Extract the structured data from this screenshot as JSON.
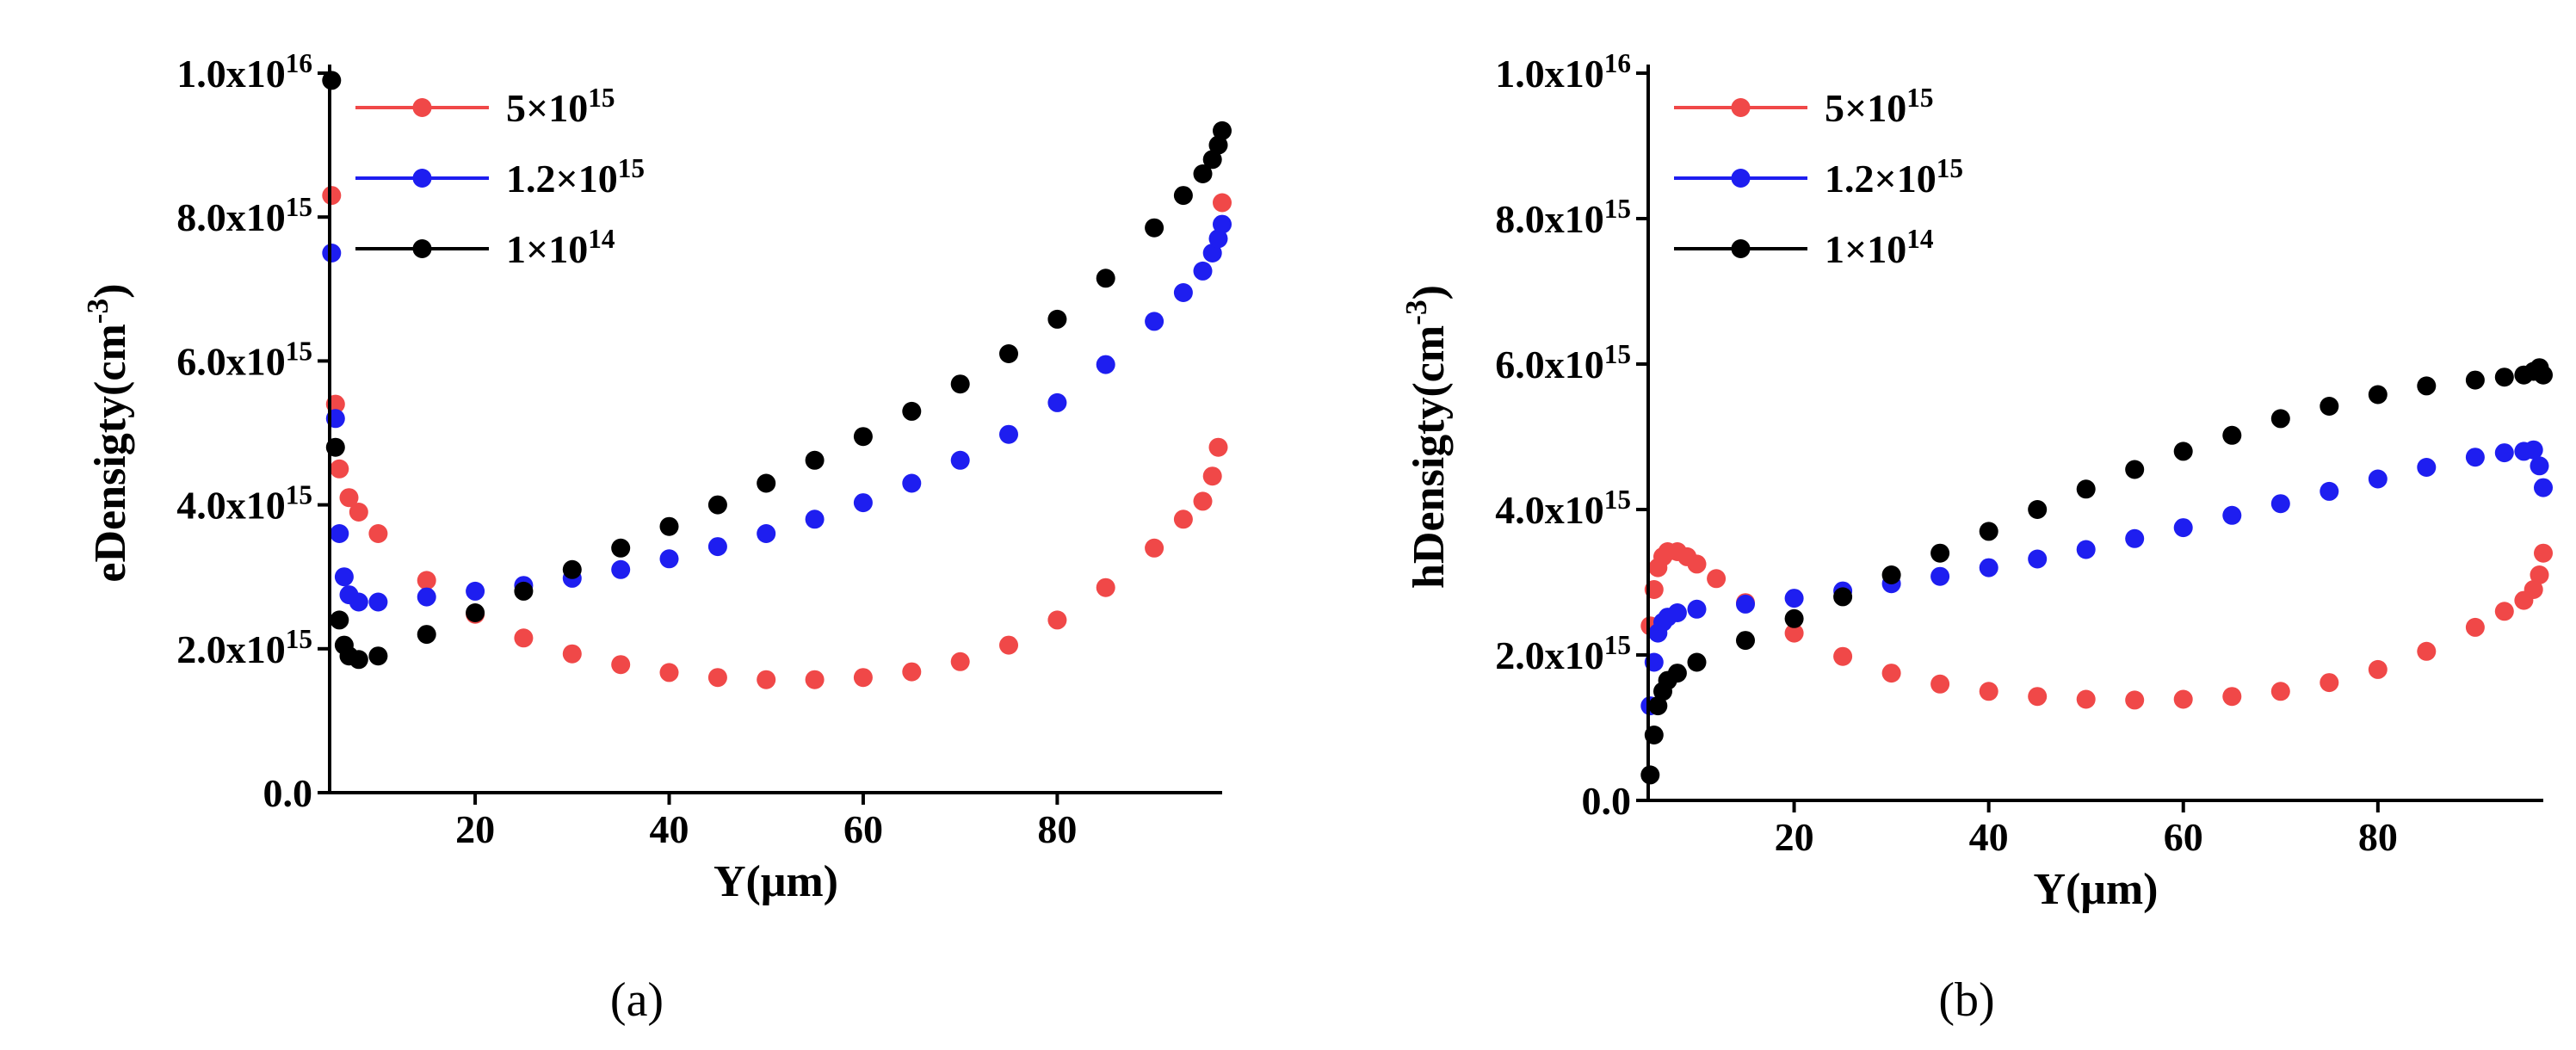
{
  "chart_data": [
    {
      "type": "scatter",
      "panel": "a",
      "caption": "(a)",
      "xlabel": "Y(μm)",
      "ylabel": {
        "base": "eDensigty(cm",
        "sup": "-3",
        "close": ")"
      },
      "xlim": [
        5,
        97
      ],
      "ylim": [
        0,
        1e+16
      ],
      "xticks": [
        20,
        40,
        60,
        80
      ],
      "xtick_labels": [
        "20",
        "40",
        "60",
        "80"
      ],
      "yticks": [
        0,
        2000000000000000.0,
        4000000000000000.0,
        6000000000000000.0,
        8000000000000000.0,
        1e+16
      ],
      "ytick_labels": [
        {
          "base": "0.0",
          "sup": ""
        },
        {
          "base": "2.0x10",
          "sup": "15"
        },
        {
          "base": "4.0x10",
          "sup": "15"
        },
        {
          "base": "6.0x10",
          "sup": "15"
        },
        {
          "base": "8.0x10",
          "sup": "15"
        },
        {
          "base": "1.0x10",
          "sup": "16"
        }
      ],
      "legend": {
        "position": "top-left"
      },
      "series": [
        {
          "name": "5×10^15",
          "label_base": "5×10",
          "label_sup": "15",
          "color": "#f04848",
          "x": [
            5.2,
            5.6,
            6,
            7,
            8,
            10,
            15,
            20,
            25,
            30,
            35,
            40,
            45,
            50,
            55,
            60,
            65,
            70,
            75,
            80,
            85,
            90,
            93,
            95,
            96,
            96.6,
            97
          ],
          "y": [
            8300000000000000.0,
            5400000000000000.0,
            4500000000000000.0,
            4100000000000000.0,
            3900000000000000.0,
            3600000000000000.0,
            2950000000000000.0,
            2480000000000000.0,
            2150000000000000.0,
            1930000000000000.0,
            1780000000000000.0,
            1670000000000000.0,
            1600000000000000.0,
            1570000000000000.0,
            1570000000000000.0,
            1600000000000000.0,
            1680000000000000.0,
            1820000000000000.0,
            2050000000000000.0,
            2400000000000000.0,
            2850000000000000.0,
            3400000000000000.0,
            3800000000000000.0,
            4050000000000000.0,
            4400000000000000.0,
            4800000000000000.0,
            8200000000000000.0
          ]
        },
        {
          "name": "1.2×10^15",
          "label_base": "1.2×10",
          "label_sup": "15",
          "color": "#1e1ef0",
          "x": [
            5.2,
            5.6,
            6,
            6.5,
            7,
            8,
            10,
            15,
            20,
            25,
            30,
            35,
            40,
            45,
            50,
            55,
            60,
            65,
            70,
            75,
            80,
            85,
            90,
            93,
            95,
            96,
            96.6,
            97
          ],
          "y": [
            7500000000000000.0,
            5200000000000000.0,
            3600000000000000.0,
            3000000000000000.0,
            2750000000000000.0,
            2650000000000000.0,
            2650000000000000.0,
            2720000000000000.0,
            2800000000000000.0,
            2880000000000000.0,
            2980000000000000.0,
            3100000000000000.0,
            3250000000000000.0,
            3420000000000000.0,
            3600000000000000.0,
            3800000000000000.0,
            4030000000000000.0,
            4300000000000000.0,
            4620000000000000.0,
            4980000000000000.0,
            5420000000000000.0,
            5950000000000000.0,
            6550000000000000.0,
            6950000000000000.0,
            7250000000000000.0,
            7500000000000000.0,
            7700000000000000.0,
            7900000000000000.0
          ]
        },
        {
          "name": "1×10^14",
          "label_base": "1×10",
          "label_sup": "14",
          "color": "#000000",
          "x": [
            5.2,
            5.6,
            6,
            6.5,
            7,
            8,
            10,
            15,
            20,
            25,
            30,
            35,
            40,
            45,
            50,
            55,
            60,
            65,
            70,
            75,
            80,
            85,
            90,
            93,
            95,
            96,
            96.6,
            97
          ],
          "y": [
            9900000000000000.0,
            4800000000000000.0,
            2400000000000000.0,
            2050000000000000.0,
            1900000000000000.0,
            1850000000000000.0,
            1900000000000000.0,
            2200000000000000.0,
            2500000000000000.0,
            2800000000000000.0,
            3100000000000000.0,
            3400000000000000.0,
            3700000000000000.0,
            4000000000000000.0,
            4300000000000000.0,
            4620000000000000.0,
            4950000000000000.0,
            5300000000000000.0,
            5680000000000000.0,
            6100000000000000.0,
            6580000000000000.0,
            7150000000000000.0,
            7850000000000000.0,
            8300000000000000.0,
            8600000000000000.0,
            8800000000000000.0,
            9000000000000000.0,
            9200000000000000.0
          ]
        }
      ]
    },
    {
      "type": "scatter",
      "panel": "b",
      "caption": "(b)",
      "xlabel": "Y(μm)",
      "ylabel": {
        "base": "hDensigty(cm",
        "sup": "-3",
        "close": ")"
      },
      "xlim": [
        5,
        97
      ],
      "ylim": [
        0,
        1e+16
      ],
      "xticks": [
        20,
        40,
        60,
        80
      ],
      "xtick_labels": [
        "20",
        "40",
        "60",
        "80"
      ],
      "yticks": [
        0,
        2000000000000000.0,
        4000000000000000.0,
        6000000000000000.0,
        8000000000000000.0,
        1e+16
      ],
      "ytick_labels": [
        {
          "base": "0.0",
          "sup": ""
        },
        {
          "base": "2.0x10",
          "sup": "15"
        },
        {
          "base": "4.0x10",
          "sup": "15"
        },
        {
          "base": "6.0x10",
          "sup": "15"
        },
        {
          "base": "8.0x10",
          "sup": "15"
        },
        {
          "base": "1.0x10",
          "sup": "16"
        }
      ],
      "legend": {
        "position": "top-left"
      },
      "series": [
        {
          "name": "5×10^15",
          "label_base": "5×10",
          "label_sup": "15",
          "color": "#f04848",
          "x": [
            5.2,
            5.6,
            6,
            6.5,
            7,
            8,
            9,
            10,
            12,
            15,
            20,
            25,
            30,
            35,
            40,
            45,
            50,
            55,
            60,
            65,
            70,
            75,
            80,
            85,
            90,
            93,
            95,
            96,
            96.6,
            97
          ],
          "y": [
            2400000000000000.0,
            2900000000000000.0,
            3200000000000000.0,
            3350000000000000.0,
            3420000000000000.0,
            3420000000000000.0,
            3350000000000000.0,
            3250000000000000.0,
            3050000000000000.0,
            2720000000000000.0,
            2300000000000000.0,
            1980000000000000.0,
            1750000000000000.0,
            1600000000000000.0,
            1500000000000000.0,
            1430000000000000.0,
            1390000000000000.0,
            1380000000000000.0,
            1390000000000000.0,
            1430000000000000.0,
            1500000000000000.0,
            1620000000000000.0,
            1800000000000000.0,
            2050000000000000.0,
            2380000000000000.0,
            2600000000000000.0,
            2750000000000000.0,
            2900000000000000.0,
            3100000000000000.0,
            3400000000000000.0
          ]
        },
        {
          "name": "1.2×10^15",
          "label_base": "1.2×10",
          "label_sup": "15",
          "color": "#1e1ef0",
          "x": [
            5.2,
            5.6,
            6,
            6.5,
            7,
            8,
            10,
            15,
            20,
            25,
            30,
            35,
            40,
            45,
            50,
            55,
            60,
            65,
            70,
            75,
            80,
            85,
            90,
            93,
            95,
            96,
            96.6,
            97
          ],
          "y": [
            1300000000000000.0,
            1900000000000000.0,
            2300000000000000.0,
            2450000000000000.0,
            2520000000000000.0,
            2580000000000000.0,
            2630000000000000.0,
            2700000000000000.0,
            2780000000000000.0,
            2880000000000000.0,
            2980000000000000.0,
            3080000000000000.0,
            3200000000000000.0,
            3320000000000000.0,
            3450000000000000.0,
            3600000000000000.0,
            3750000000000000.0,
            3920000000000000.0,
            4080000000000000.0,
            4250000000000000.0,
            4420000000000000.0,
            4580000000000000.0,
            4720000000000000.0,
            4780000000000000.0,
            4800000000000000.0,
            4820000000000000.0,
            4600000000000000.0,
            4300000000000000.0
          ]
        },
        {
          "name": "1×10^14",
          "label_base": "1×10",
          "label_sup": "14",
          "color": "#000000",
          "x": [
            5.2,
            5.6,
            6,
            6.5,
            7,
            8,
            10,
            15,
            20,
            25,
            30,
            35,
            40,
            45,
            50,
            55,
            60,
            65,
            70,
            75,
            80,
            85,
            90,
            93,
            95,
            96,
            96.6,
            97
          ],
          "y": [
            350000000000000.0,
            900000000000000.0,
            1300000000000000.0,
            1500000000000000.0,
            1650000000000000.0,
            1750000000000000.0,
            1900000000000000.0,
            2200000000000000.0,
            2500000000000000.0,
            2800000000000000.0,
            3100000000000000.0,
            3400000000000000.0,
            3700000000000000.0,
            4000000000000000.0,
            4280000000000000.0,
            4550000000000000.0,
            4800000000000000.0,
            5020000000000000.0,
            5250000000000000.0,
            5420000000000000.0,
            5580000000000000.0,
            5700000000000000.0,
            5780000000000000.0,
            5820000000000000.0,
            5850000000000000.0,
            5900000000000000.0,
            5950000000000000.0,
            5850000000000000.0
          ]
        }
      ]
    }
  ]
}
